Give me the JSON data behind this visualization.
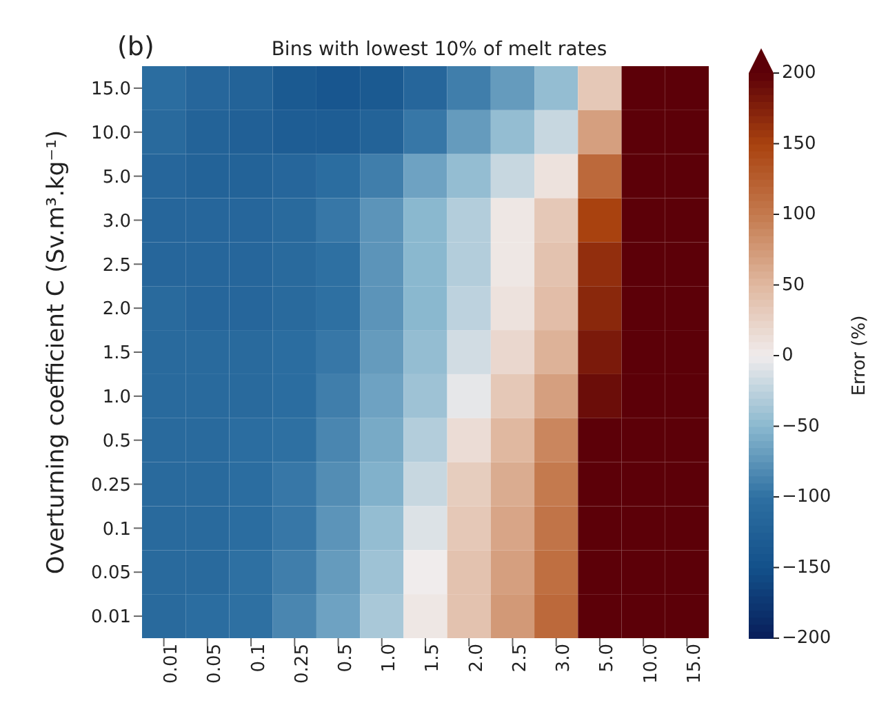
{
  "chart_data": {
    "type": "heatmap",
    "title": "Bins with lowest 10% of melt rates",
    "annotations": [
      "(b)"
    ],
    "ylabel": "Overturning coefficient C (Sv.m³.kg⁻¹)",
    "clabel": "Error (%)",
    "categories": [
      "0.01",
      "0.05",
      "0.1",
      "0.25",
      "0.5",
      "1.0",
      "1.5",
      "2.0",
      "2.5",
      "3.0",
      "5.0",
      "10.0",
      "15.0"
    ],
    "y_categories": [
      "15.0",
      "10.0",
      "5.0",
      "3.0",
      "2.5",
      "2.0",
      "1.5",
      "1.0",
      "0.5",
      "0.25",
      "0.1",
      "0.05",
      "0.01"
    ],
    "cells": [
      [
        -105,
        -115,
        -120,
        -135,
        -140,
        -135,
        -115,
        -90,
        -70,
        -45,
        35,
        200,
        200
      ],
      [
        -110,
        -120,
        -125,
        -130,
        -130,
        -120,
        -95,
        -70,
        -45,
        -20,
        70,
        200,
        200
      ],
      [
        -115,
        -120,
        -120,
        -115,
        -105,
        -90,
        -65,
        -45,
        -20,
        10,
        115,
        200,
        200
      ],
      [
        -115,
        -115,
        -115,
        -110,
        -95,
        -75,
        -50,
        -30,
        5,
        35,
        150,
        200,
        200
      ],
      [
        -115,
        -115,
        -115,
        -110,
        -100,
        -75,
        -50,
        -30,
        5,
        40,
        165,
        200,
        200
      ],
      [
        -110,
        -115,
        -115,
        -110,
        -100,
        -75,
        -50,
        -25,
        10,
        45,
        170,
        200,
        200
      ],
      [
        -110,
        -110,
        -110,
        -105,
        -95,
        -70,
        -45,
        -15,
        20,
        55,
        180,
        200,
        200
      ],
      [
        -110,
        -110,
        -110,
        -105,
        -90,
        -65,
        -40,
        -5,
        35,
        70,
        190,
        200,
        200
      ],
      [
        -110,
        -110,
        -105,
        -100,
        -85,
        -60,
        -30,
        15,
        50,
        90,
        200,
        200,
        200
      ],
      [
        -110,
        -110,
        -105,
        -95,
        -80,
        -55,
        -20,
        30,
        60,
        100,
        200,
        200,
        200
      ],
      [
        -110,
        -110,
        -105,
        -95,
        -75,
        -45,
        -10,
        35,
        65,
        105,
        200,
        200,
        200
      ],
      [
        -110,
        -110,
        -100,
        -90,
        -70,
        -40,
        0,
        40,
        70,
        110,
        200,
        200,
        200
      ],
      [
        -110,
        -105,
        -100,
        -85,
        -65,
        -35,
        5,
        40,
        75,
        115,
        200,
        200,
        200
      ]
    ],
    "clim": [
      -200,
      200
    ],
    "cticks": [
      -200,
      -150,
      -100,
      -50,
      0,
      50,
      100,
      150,
      200
    ]
  }
}
